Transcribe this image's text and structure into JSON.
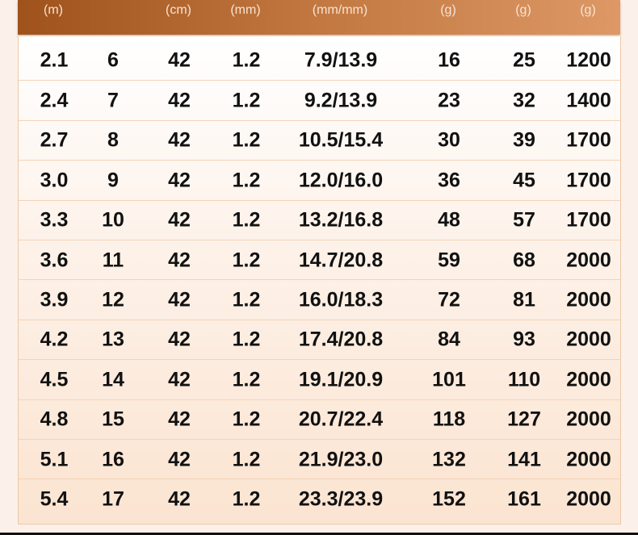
{
  "headers": [
    "(m)",
    "",
    "(cm)",
    "(mm)",
    "(mm/mm)",
    "(g)",
    "(g)",
    "(g)"
  ],
  "rows": [
    [
      "2.1",
      "6",
      "42",
      "1.2",
      "7.9/13.9",
      "16",
      "25",
      "1200"
    ],
    [
      "2.4",
      "7",
      "42",
      "1.2",
      "9.2/13.9",
      "23",
      "32",
      "1400"
    ],
    [
      "2.7",
      "8",
      "42",
      "1.2",
      "10.5/15.4",
      "30",
      "39",
      "1700"
    ],
    [
      "3.0",
      "9",
      "42",
      "1.2",
      "12.0/16.0",
      "36",
      "45",
      "1700"
    ],
    [
      "3.3",
      "10",
      "42",
      "1.2",
      "13.2/16.8",
      "48",
      "57",
      "1700"
    ],
    [
      "3.6",
      "11",
      "42",
      "1.2",
      "14.7/20.8",
      "59",
      "68",
      "2000"
    ],
    [
      "3.9",
      "12",
      "42",
      "1.2",
      "16.0/18.3",
      "72",
      "81",
      "2000"
    ],
    [
      "4.2",
      "13",
      "42",
      "1.2",
      "17.4/20.8",
      "84",
      "93",
      "2000"
    ],
    [
      "4.5",
      "14",
      "42",
      "1.2",
      "19.1/20.9",
      "101",
      "110",
      "2000"
    ],
    [
      "4.8",
      "15",
      "42",
      "1.2",
      "20.7/22.4",
      "118",
      "127",
      "2000"
    ],
    [
      "5.1",
      "16",
      "42",
      "1.2",
      "21.9/23.0",
      "132",
      "141",
      "2000"
    ],
    [
      "5.4",
      "17",
      "42",
      "1.2",
      "23.3/23.9",
      "152",
      "161",
      "2000"
    ]
  ],
  "colors": {
    "header_start": "#9f521c",
    "header_end": "#dd9866",
    "text": "#111111"
  }
}
